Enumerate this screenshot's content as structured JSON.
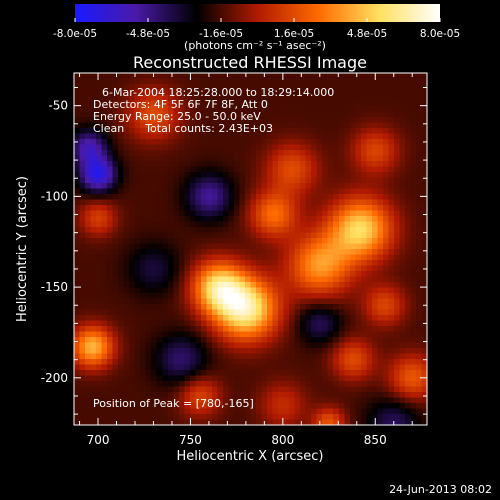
{
  "colorbar": {
    "ticks": [
      "-8.0e-05",
      "-4.8e-05",
      "-1.6e-05",
      "1.6e-05",
      "4.8e-05",
      "8.0e-05"
    ],
    "range": [
      -8e-05,
      8e-05
    ],
    "units_label": "(photons cm⁻² s⁻¹ asec⁻²)",
    "colors": [
      "#1a1aff",
      "#4a1aa8",
      "#000000",
      "#b01a00",
      "#ff6a00",
      "#ffe060",
      "#ffffff"
    ]
  },
  "chart_data": {
    "type": "heatmap",
    "title": "Reconstructed RHESSI Image",
    "xlabel": "Heliocentric X (arcsec)",
    "ylabel": "Heliocentric Y (arcsec)",
    "xlim": [
      687,
      878
    ],
    "ylim": [
      -226,
      -32
    ],
    "x_ticks": [
      700,
      750,
      800,
      850
    ],
    "y_ticks": [
      -50,
      -100,
      -150,
      -200
    ],
    "annotations": [
      "6-Mar-2004 18:25:28.000 to 18:29:14.000",
      "Detectors: 4F 5F 6F 7F 8F, Att 0",
      "Energy Range: 25.0 - 50.0 keV",
      "Clean      Total counts: 2.43E+03"
    ],
    "peak_label": "Position of Peak = [780,-165]",
    "peak_position": [
      780,
      -165
    ],
    "sources": [
      {
        "x": 780,
        "y": -162,
        "sigma": 12,
        "amplitude": 8e-05
      },
      {
        "x": 765,
        "y": -150,
        "sigma": 10,
        "amplitude": 6.5e-05
      },
      {
        "x": 842,
        "y": -118,
        "sigma": 12,
        "amplitude": 6.8e-05
      },
      {
        "x": 820,
        "y": -138,
        "sigma": 12,
        "amplitude": 5.2e-05
      },
      {
        "x": 795,
        "y": -110,
        "sigma": 9,
        "amplitude": 4.2e-05
      },
      {
        "x": 805,
        "y": -85,
        "sigma": 10,
        "amplitude": 3.2e-05
      },
      {
        "x": 850,
        "y": -75,
        "sigma": 9,
        "amplitude": 3e-05
      },
      {
        "x": 730,
        "y": -55,
        "sigma": 10,
        "amplitude": 3.2e-05
      },
      {
        "x": 697,
        "y": -183,
        "sigma": 8,
        "amplitude": 6e-05
      },
      {
        "x": 700,
        "y": -112,
        "sigma": 7,
        "amplitude": 2.8e-05
      },
      {
        "x": 838,
        "y": -190,
        "sigma": 8,
        "amplitude": 3.2e-05
      },
      {
        "x": 870,
        "y": -200,
        "sigma": 9,
        "amplitude": 3.6e-05
      },
      {
        "x": 855,
        "y": -160,
        "sigma": 8,
        "amplitude": 3e-05
      },
      {
        "x": 755,
        "y": -210,
        "sigma": 8,
        "amplitude": 3e-05
      },
      {
        "x": 800,
        "y": -215,
        "sigma": 9,
        "amplitude": 2.2e-05
      },
      {
        "x": 825,
        "y": -225,
        "sigma": 6,
        "amplitude": 3.5e-05
      },
      {
        "x": 700,
        "y": -88,
        "sigma": 7,
        "amplitude": -5.5e-05
      },
      {
        "x": 695,
        "y": -73,
        "sigma": 7,
        "amplitude": -4e-05
      },
      {
        "x": 760,
        "y": -100,
        "sigma": 9,
        "amplitude": -3.5e-05
      },
      {
        "x": 745,
        "y": -190,
        "sigma": 10,
        "amplitude": -2.8e-05
      },
      {
        "x": 860,
        "y": -225,
        "sigma": 10,
        "amplitude": -2.5e-05
      },
      {
        "x": 820,
        "y": -170,
        "sigma": 8,
        "amplitude": -2.5e-05
      },
      {
        "x": 730,
        "y": -140,
        "sigma": 10,
        "amplitude": -2e-05
      }
    ],
    "background_level": -1.6e-05
  },
  "footer": {
    "timestamp": "24-Jun-2013 08:02"
  }
}
